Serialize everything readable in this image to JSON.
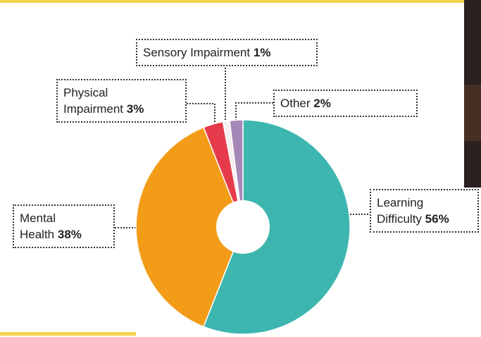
{
  "chart_data": {
    "type": "pie",
    "categories": [
      "Learning Difficulty",
      "Mental Health",
      "Physical Impairment",
      "Sensory Impairment",
      "Other"
    ],
    "values": [
      56,
      38,
      3,
      1,
      2
    ],
    "value_labels": [
      "56%",
      "38%",
      "3%",
      "1%",
      "2%"
    ],
    "colors": [
      "#3db6b0",
      "#f39c18",
      "#e63b4a",
      "#f6eef0",
      "#a688b8"
    ],
    "donut": true
  }
}
